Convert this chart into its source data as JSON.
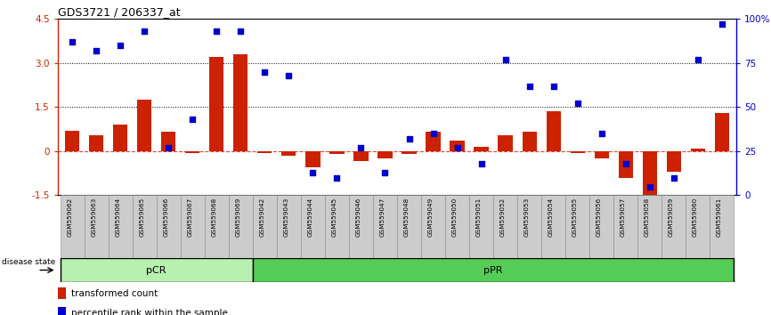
{
  "title": "GDS3721 / 206337_at",
  "samples": [
    "GSM559062",
    "GSM559063",
    "GSM559064",
    "GSM559065",
    "GSM559066",
    "GSM559067",
    "GSM559068",
    "GSM559069",
    "GSM559042",
    "GSM559043",
    "GSM559044",
    "GSM559045",
    "GSM559046",
    "GSM559047",
    "GSM559048",
    "GSM559049",
    "GSM559050",
    "GSM559051",
    "GSM559052",
    "GSM559053",
    "GSM559054",
    "GSM559055",
    "GSM559056",
    "GSM559057",
    "GSM559058",
    "GSM559059",
    "GSM559060",
    "GSM559061"
  ],
  "transformed_count": [
    0.7,
    0.55,
    0.9,
    1.75,
    0.65,
    -0.05,
    3.2,
    3.3,
    -0.05,
    -0.15,
    -0.55,
    -0.1,
    -0.35,
    -0.25,
    -0.1,
    0.65,
    0.35,
    0.15,
    0.55,
    0.65,
    1.35,
    -0.05,
    -0.25,
    -0.9,
    -1.55,
    -0.7,
    0.1,
    1.3
  ],
  "percentile_rank": [
    87,
    82,
    85,
    93,
    27,
    43,
    93,
    93,
    70,
    68,
    13,
    10,
    27,
    13,
    32,
    35,
    27,
    18,
    77,
    62,
    62,
    52,
    35,
    18,
    5,
    10,
    77,
    97
  ],
  "pCR_count": 8,
  "pPR_count": 20,
  "bar_color": "#cc2200",
  "dot_color": "#0000cc",
  "pCR_light": "#b8f0b0",
  "pPR_green": "#55cc55",
  "background_color": "#ffffff",
  "ylim_left": [
    -1.5,
    4.5
  ],
  "ylim_right": [
    0,
    100
  ],
  "yticks_left": [
    -1.5,
    0.0,
    1.5,
    3.0,
    4.5
  ],
  "yticks_right": [
    0,
    25,
    50,
    75,
    100
  ],
  "hlines": [
    1.5,
    3.0
  ],
  "legend_items": [
    "transformed count",
    "percentile rank within the sample"
  ]
}
